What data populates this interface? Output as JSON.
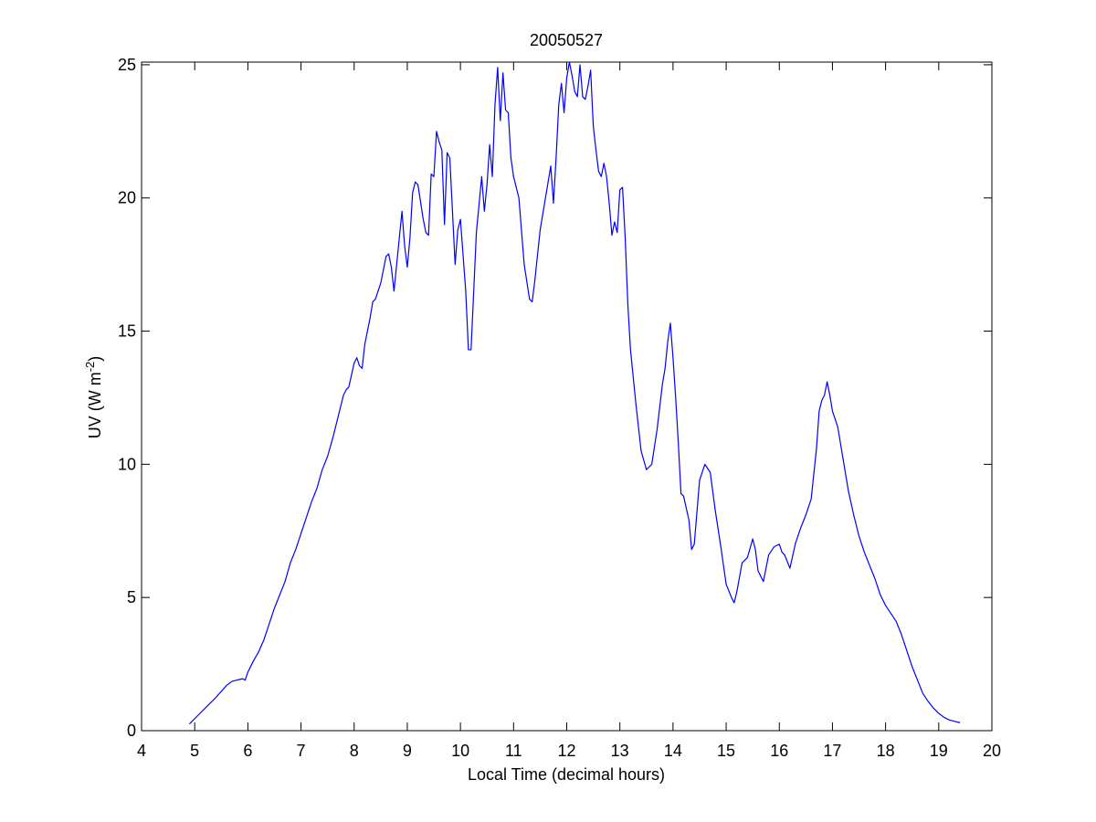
{
  "chart_data": {
    "type": "line",
    "title": "20050527",
    "xlabel": "Local Time (decimal hours)",
    "ylabel": {
      "text": "UV (W m",
      "superscript": "-2",
      "suffix": ")"
    },
    "color": "#0000ff",
    "xlim": [
      4,
      20
    ],
    "xticks": [
      4,
      5,
      6,
      7,
      8,
      9,
      10,
      11,
      12,
      13,
      14,
      15,
      16,
      17,
      18,
      19,
      20
    ],
    "ylim": [
      0,
      25.1
    ],
    "yticks": [
      0,
      5,
      10,
      15,
      20,
      25
    ],
    "x": [
      4.9,
      5.0,
      5.2,
      5.4,
      5.6,
      5.7,
      5.8,
      5.9,
      5.95,
      6.0,
      6.1,
      6.2,
      6.3,
      6.4,
      6.5,
      6.6,
      6.7,
      6.8,
      6.9,
      7.0,
      7.1,
      7.2,
      7.3,
      7.4,
      7.5,
      7.6,
      7.7,
      7.8,
      7.85,
      7.9,
      8.0,
      8.05,
      8.1,
      8.15,
      8.2,
      8.3,
      8.35,
      8.4,
      8.5,
      8.6,
      8.65,
      8.7,
      8.75,
      8.8,
      8.9,
      8.95,
      9.0,
      9.05,
      9.1,
      9.15,
      9.2,
      9.3,
      9.35,
      9.4,
      9.45,
      9.5,
      9.55,
      9.6,
      9.65,
      9.7,
      9.75,
      9.8,
      9.85,
      9.9,
      9.95,
      10.0,
      10.1,
      10.15,
      10.2,
      10.3,
      10.4,
      10.45,
      10.5,
      10.55,
      10.6,
      10.65,
      10.7,
      10.75,
      10.8,
      10.85,
      10.9,
      10.95,
      11.0,
      11.1,
      11.2,
      11.3,
      11.35,
      11.4,
      11.5,
      11.6,
      11.7,
      11.75,
      11.8,
      11.85,
      11.9,
      11.95,
      12.0,
      12.05,
      12.1,
      12.15,
      12.2,
      12.25,
      12.3,
      12.35,
      12.4,
      12.45,
      12.5,
      12.55,
      12.6,
      12.65,
      12.7,
      12.75,
      12.8,
      12.85,
      12.9,
      12.95,
      13.0,
      13.05,
      13.1,
      13.15,
      13.2,
      13.3,
      13.4,
      13.5,
      13.6,
      13.7,
      13.8,
      13.85,
      13.9,
      13.95,
      14.0,
      14.05,
      14.1,
      14.15,
      14.2,
      14.3,
      14.35,
      14.4,
      14.5,
      14.6,
      14.7,
      14.8,
      14.9,
      15.0,
      15.1,
      15.15,
      15.2,
      15.3,
      15.4,
      15.5,
      15.55,
      15.6,
      15.7,
      15.8,
      15.9,
      16.0,
      16.05,
      16.1,
      16.2,
      16.3,
      16.4,
      16.5,
      16.6,
      16.7,
      16.75,
      16.8,
      16.85,
      16.9,
      16.95,
      17.0,
      17.1,
      17.2,
      17.3,
      17.4,
      17.5,
      17.6,
      17.7,
      17.8,
      17.9,
      18.0,
      18.1,
      18.2,
      18.3,
      18.4,
      18.5,
      18.6,
      18.7,
      18.8,
      18.9,
      19.0,
      19.1,
      19.2,
      19.3,
      19.4
    ],
    "values": [
      0.25,
      0.45,
      0.85,
      1.25,
      1.7,
      1.85,
      1.9,
      1.95,
      1.9,
      2.2,
      2.6,
      2.95,
      3.4,
      4.0,
      4.6,
      5.1,
      5.6,
      6.3,
      6.8,
      7.4,
      8.0,
      8.6,
      9.1,
      9.8,
      10.3,
      11.0,
      11.8,
      12.6,
      12.8,
      12.9,
      13.8,
      14.0,
      13.7,
      13.6,
      14.5,
      15.5,
      16.1,
      16.2,
      16.8,
      17.8,
      17.9,
      17.4,
      16.5,
      17.5,
      19.5,
      18.2,
      17.4,
      18.5,
      20.2,
      20.6,
      20.5,
      19.2,
      18.7,
      18.6,
      20.9,
      20.8,
      22.5,
      22.1,
      21.8,
      19.0,
      21.7,
      21.5,
      19.5,
      17.5,
      18.8,
      19.2,
      16.5,
      14.3,
      14.3,
      18.7,
      20.8,
      19.5,
      20.5,
      22.0,
      20.8,
      23.5,
      24.9,
      22.9,
      24.7,
      23.3,
      23.2,
      21.5,
      20.8,
      20.0,
      17.5,
      16.2,
      16.1,
      16.9,
      18.8,
      20.0,
      21.2,
      19.8,
      21.5,
      23.5,
      24.3,
      23.2,
      24.5,
      25.1,
      24.6,
      24.0,
      23.8,
      25.0,
      23.8,
      23.7,
      24.2,
      24.8,
      22.7,
      21.8,
      21.0,
      20.8,
      21.3,
      20.8,
      19.8,
      18.6,
      19.1,
      18.7,
      20.3,
      20.4,
      18.5,
      16.0,
      14.3,
      12.3,
      10.5,
      9.8,
      10.0,
      11.3,
      13.0,
      13.6,
      14.6,
      15.3,
      14.0,
      12.5,
      10.8,
      8.9,
      8.8,
      7.9,
      6.8,
      7.0,
      9.4,
      10.0,
      9.7,
      8.2,
      6.9,
      5.5,
      5.0,
      4.8,
      5.2,
      6.3,
      6.5,
      7.2,
      6.8,
      6.0,
      5.6,
      6.6,
      6.9,
      7.0,
      6.7,
      6.6,
      6.1,
      7.0,
      7.6,
      8.1,
      8.7,
      10.6,
      12.0,
      12.4,
      12.6,
      13.1,
      12.6,
      12.0,
      11.4,
      10.2,
      9.0,
      8.1,
      7.3,
      6.7,
      6.2,
      5.7,
      5.1,
      4.7,
      4.4,
      4.1,
      3.6,
      3.0,
      2.4,
      1.9,
      1.4,
      1.1,
      0.85,
      0.65,
      0.5,
      0.4,
      0.35,
      0.3
    ]
  }
}
